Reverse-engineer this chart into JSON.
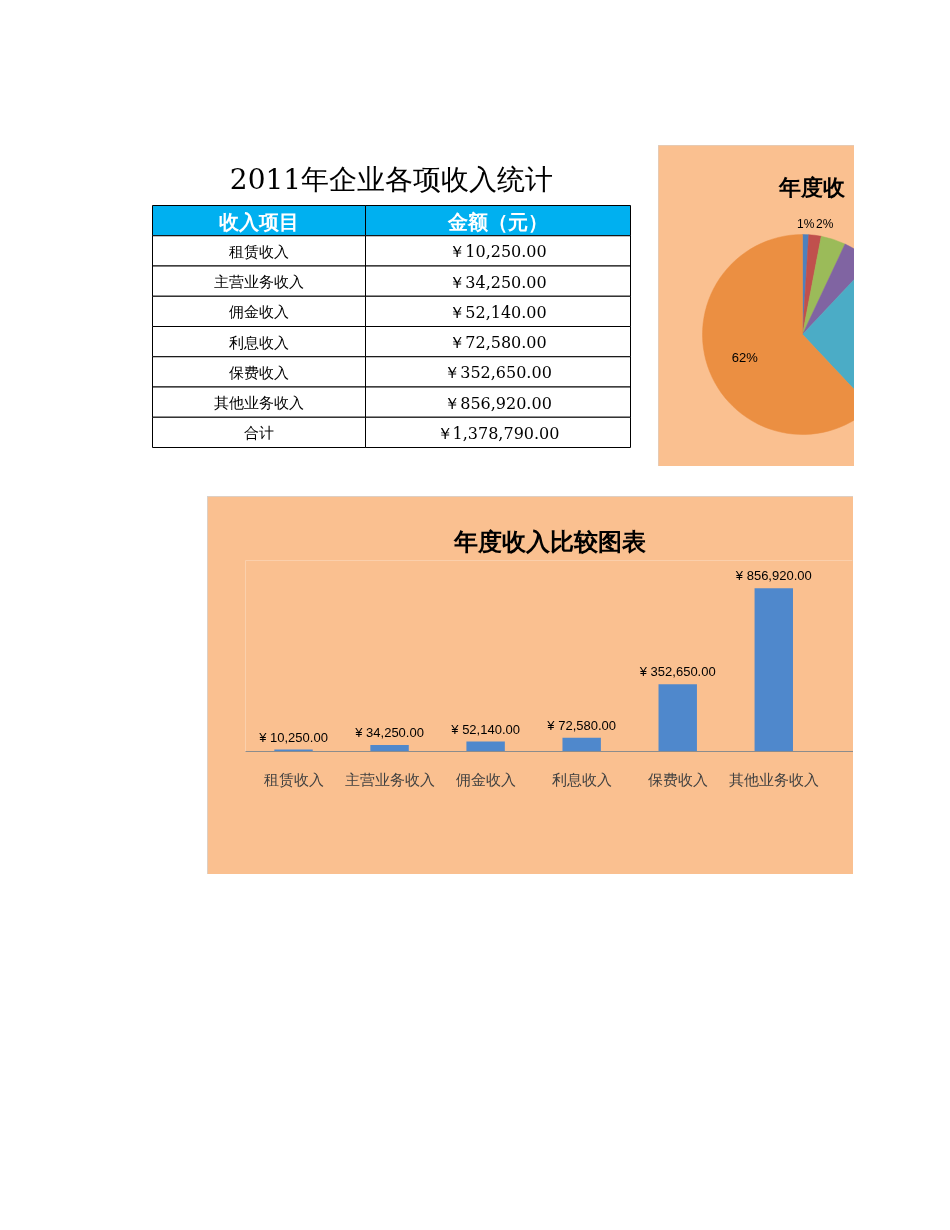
{
  "chart_data": [
    {
      "type": "other",
      "title": "2011年企业各项收入统计",
      "ylabel": "收入项目",
      "xlabel": "金额（元）",
      "categories": [
        "租赁收入",
        "主营业务收入",
        "佣金收入",
        "利息收入",
        "保费收入",
        "其他业务收入",
        "合计"
      ],
      "value_labels": [
        "￥10,250.00",
        "￥34,250.00",
        "￥52,140.00",
        "￥72,580.00",
        "￥352,650.00",
        "￥856,920.00",
        "￥1,378,790.00"
      ]
    },
    {
      "type": "pie",
      "title": "年度收",
      "categories": [
        null,
        null,
        null,
        null,
        null,
        null
      ],
      "values": [
        1,
        2,
        4,
        5,
        26,
        62
      ],
      "colors": [
        "#4f81bd",
        "#c0504d",
        "#9bbb59",
        "#8064a2",
        "#4bacc6",
        "#eb8f42"
      ],
      "value_labels": [
        "1%",
        "2%",
        null,
        null,
        null,
        "62%"
      ]
    },
    {
      "type": "bar",
      "title": "年度收入比较图表",
      "categories": [
        "租赁收入",
        "主营业务收入",
        "佣金收入",
        "利息收入",
        "保费收入",
        "其他业务收入"
      ],
      "values": [
        10250,
        34250,
        52140,
        72580,
        352650,
        856920
      ],
      "color": "#4f88cc",
      "value_labels": [
        "¥ 10,250.00",
        "¥ 34,250.00",
        "¥ 52,140.00",
        "¥ 72,580.00",
        "¥ 352,650.00",
        "¥ 856,920.00"
      ],
      "tick_labels": "x"
    }
  ]
}
